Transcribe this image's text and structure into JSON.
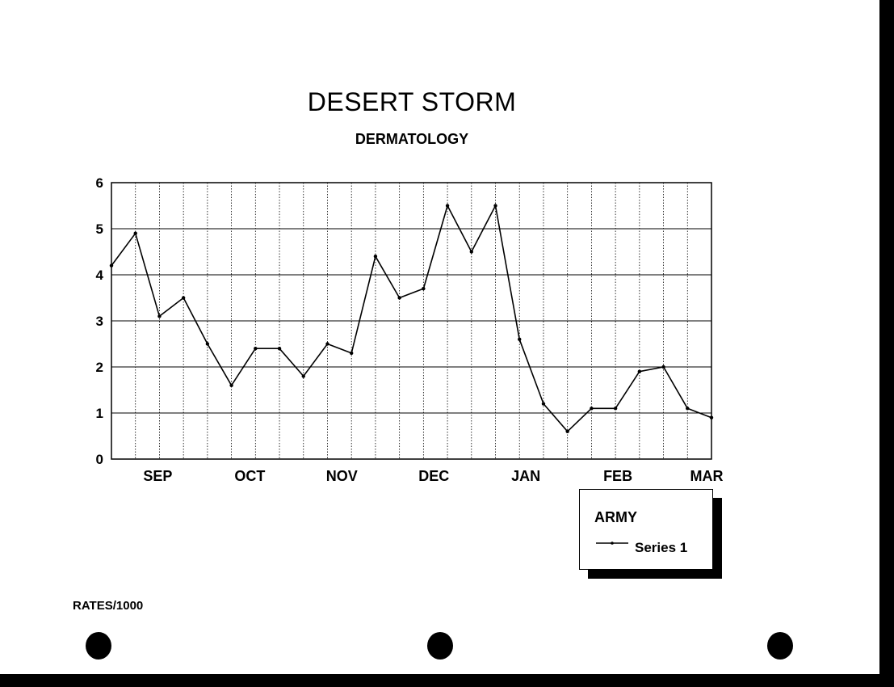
{
  "chart_data": {
    "type": "line",
    "title": "DESERT STORM",
    "subtitle": "DERMATOLOGY",
    "xlabel": "",
    "ylabel": "RATES/1000",
    "x_tick_labels": [
      "SEP",
      "OCT",
      "NOV",
      "DEC",
      "JAN",
      "FEB",
      "MAR"
    ],
    "y_ticks": [
      0,
      1,
      2,
      3,
      4,
      5,
      6
    ],
    "ylim": [
      0,
      6
    ],
    "grid": true,
    "legend": {
      "title": "ARMY",
      "placement": "bottom-right, below plot"
    },
    "series": [
      {
        "name": "Series 1",
        "color": "#000000",
        "values": [
          4.2,
          4.9,
          3.1,
          3.5,
          2.5,
          1.6,
          2.4,
          2.4,
          1.8,
          2.5,
          2.3,
          4.4,
          3.5,
          3.7,
          5.5,
          4.5,
          5.5,
          2.6,
          1.2,
          0.6,
          1.1,
          1.1,
          1.9,
          2.0,
          1.1,
          0.9
        ]
      }
    ]
  }
}
